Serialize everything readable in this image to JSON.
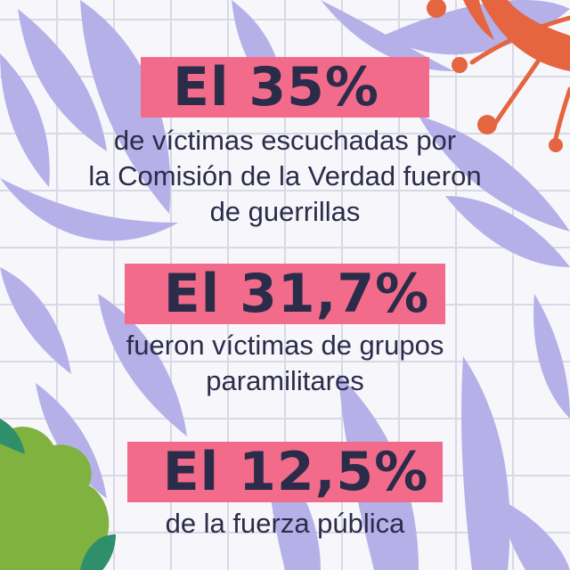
{
  "colors": {
    "background": "#f7f6fb",
    "grid": "#d9d9e6",
    "leaf": "#b5b1e8",
    "flower": "#e4653f",
    "bush": "#7fb23f",
    "bush_dark": "#2f8f6a",
    "badge": "#f26b8a",
    "text": "#2b2c4a"
  },
  "stats": [
    {
      "value": "El 35%",
      "caption_lines": [
        "de víctimas escuchadas por",
        "la Comisión de la Verdad fueron",
        "de guerrillas"
      ]
    },
    {
      "value": "El 31,7%",
      "caption_lines": [
        "fueron víctimas de grupos",
        "paramilitares"
      ]
    },
    {
      "value": "El 12,5%",
      "caption_lines": [
        "de la fuerza pública"
      ]
    }
  ]
}
